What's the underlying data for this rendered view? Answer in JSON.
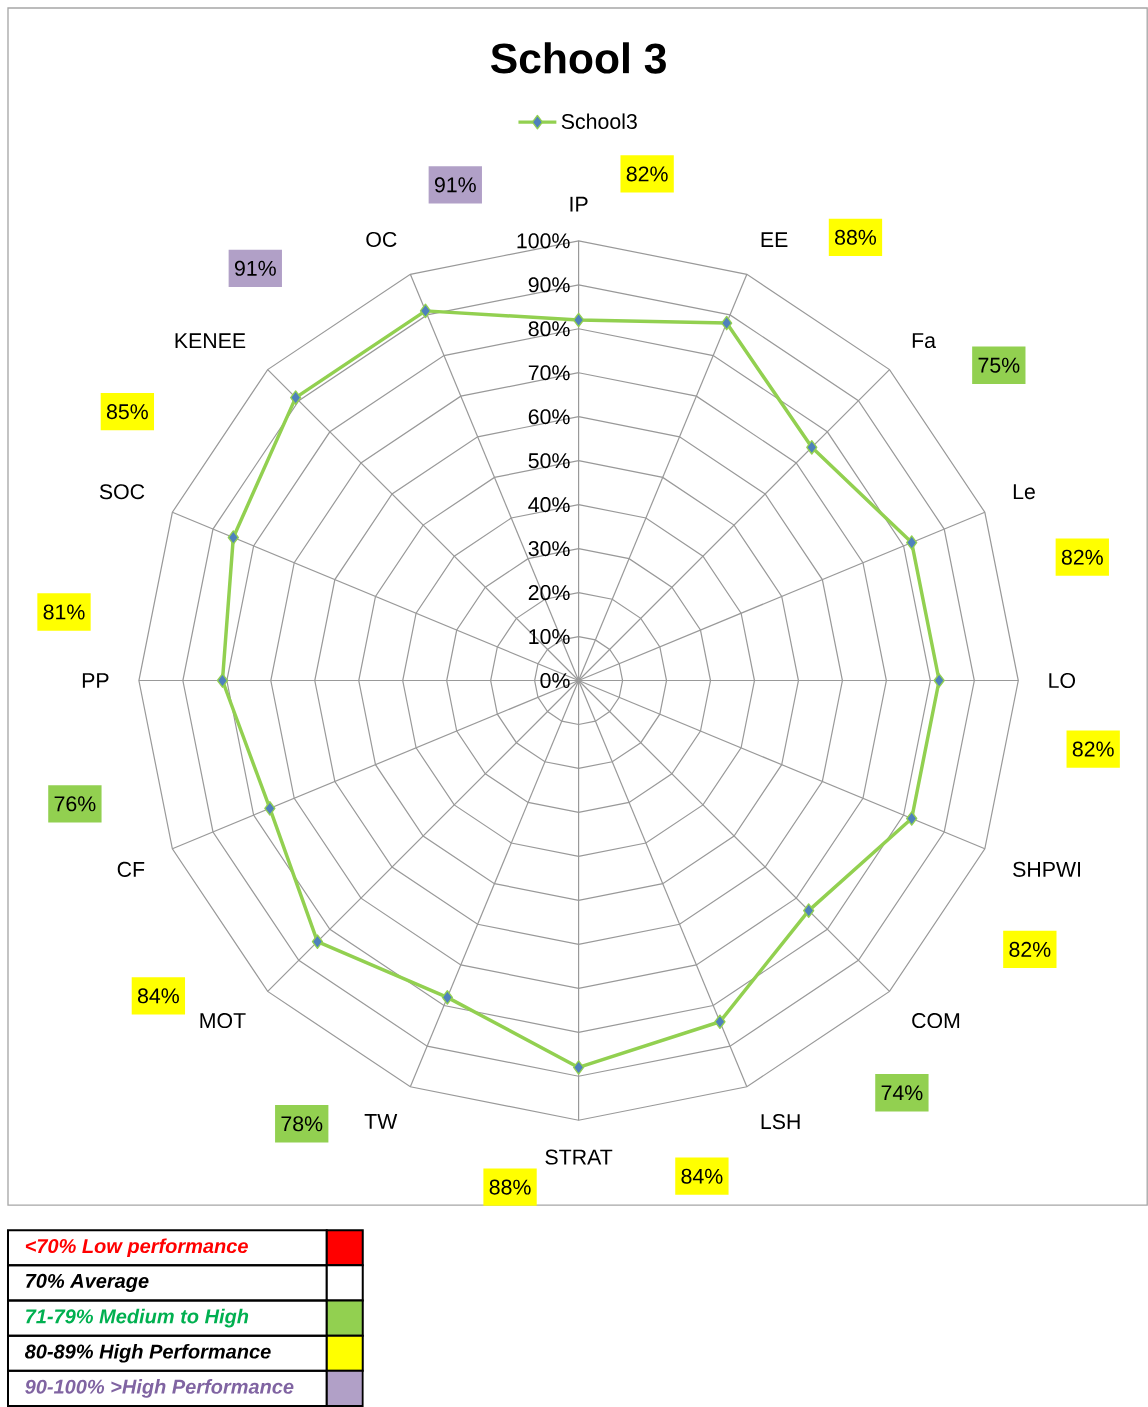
{
  "chart_data": {
    "type": "radar",
    "title": "School 3",
    "categories": [
      "IP",
      "EE",
      "Fa",
      "Le",
      "LO",
      "SHPWI",
      "COM",
      "LSH",
      "STRAT",
      "TW",
      "MOT",
      "CF",
      "PP",
      "SOC",
      "KENEE",
      "OC"
    ],
    "series": [
      {
        "name": "School3",
        "color": "#92d050",
        "values": [
          82,
          88,
          75,
          82,
          82,
          82,
          74,
          84,
          88,
          78,
          84,
          76,
          81,
          85,
          91,
          91
        ]
      }
    ],
    "ylim": [
      0,
      100
    ],
    "yticks": [
      {
        "value": 0,
        "label": "0%"
      },
      {
        "value": 10,
        "label": "10%"
      },
      {
        "value": 20,
        "label": "20%"
      },
      {
        "value": 30,
        "label": "30%"
      },
      {
        "value": 40,
        "label": "40%"
      },
      {
        "value": 50,
        "label": "50%"
      },
      {
        "value": 60,
        "label": "60%"
      },
      {
        "value": 70,
        "label": "70%"
      },
      {
        "value": 80,
        "label": "80%"
      },
      {
        "value": 90,
        "label": "90%"
      },
      {
        "value": 100,
        "label": "100%"
      }
    ],
    "value_labels": [
      "82%",
      "88%",
      "75%",
      "82%",
      "82%",
      "82%",
      "74%",
      "84%",
      "88%",
      "78%",
      "84%",
      "76%",
      "81%",
      "85%",
      "91%",
      "91%"
    ],
    "annotations": [
      "<70% Low performance",
      "70% Average",
      "71-79% Medium to High",
      "80-89% High Performance",
      "90-100% >High Performance"
    ],
    "grid": true,
    "legend": "top",
    "marker": "diamond",
    "line_style": "solid"
  }
}
